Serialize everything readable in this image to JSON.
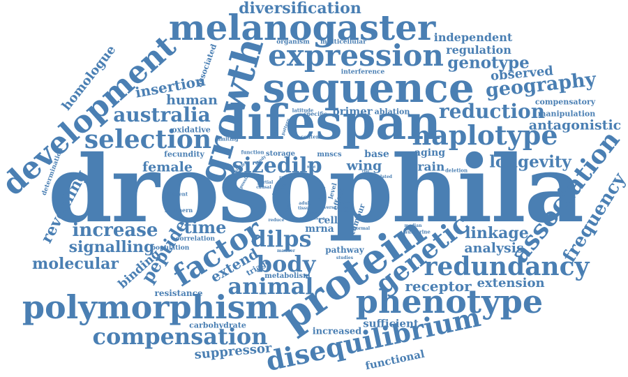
{
  "cloud": {
    "color": "#4a7fb3",
    "words": [
      {
        "text": "drosophila",
        "weight": 1.0
      },
      {
        "text": "lifespan",
        "weight": 0.62
      },
      {
        "text": "sequence",
        "weight": 0.55
      },
      {
        "text": "protein",
        "weight": 0.5
      },
      {
        "text": "melanogaster",
        "weight": 0.47
      },
      {
        "text": "growth",
        "weight": 0.47
      },
      {
        "text": "expression",
        "weight": 0.4
      },
      {
        "text": "development",
        "weight": 0.4
      },
      {
        "text": "polymorphism",
        "weight": 0.42
      },
      {
        "text": "phenotype",
        "weight": 0.42
      },
      {
        "text": "disequilibrium",
        "weight": 0.37
      },
      {
        "text": "factor",
        "weight": 0.36
      },
      {
        "text": "genetic",
        "weight": 0.36
      },
      {
        "text": "association",
        "weight": 0.34
      },
      {
        "text": "haplotype",
        "weight": 0.33
      },
      {
        "text": "redundancy",
        "weight": 0.33
      },
      {
        "text": "selection",
        "weight": 0.33
      },
      {
        "text": "compensation",
        "weight": 0.3
      },
      {
        "text": "animal",
        "weight": 0.3
      },
      {
        "text": "body",
        "weight": 0.3
      },
      {
        "text": "dilps",
        "weight": 0.3
      },
      {
        "text": "sizedilp",
        "weight": 0.29
      },
      {
        "text": "reduction",
        "weight": 0.28
      },
      {
        "text": "australia",
        "weight": 0.27
      },
      {
        "text": "geography",
        "weight": 0.26
      },
      {
        "text": "frequency",
        "weight": 0.26
      },
      {
        "text": "increase",
        "weight": 0.25
      },
      {
        "text": "diversification",
        "weight": 0.24
      },
      {
        "text": "genotype",
        "weight": 0.24
      },
      {
        "text": "longevity",
        "weight": 0.24
      },
      {
        "text": "molecular",
        "weight": 0.23
      },
      {
        "text": "time",
        "weight": 0.23
      },
      {
        "text": "peptide",
        "weight": 0.23
      },
      {
        "text": "linkage",
        "weight": 0.22
      },
      {
        "text": "signalling",
        "weight": 0.22
      },
      {
        "text": "insertion",
        "weight": 0.22
      },
      {
        "text": "antagonistic",
        "weight": 0.21
      },
      {
        "text": "analysis",
        "weight": 0.21
      },
      {
        "text": "human",
        "weight": 0.21
      },
      {
        "text": "extend",
        "weight": 0.21
      },
      {
        "text": "receptor",
        "weight": 0.21
      },
      {
        "text": "extension",
        "weight": 0.2
      },
      {
        "text": "revealing",
        "weight": 0.2
      },
      {
        "text": "female",
        "weight": 0.2
      },
      {
        "text": "homologue",
        "weight": 0.19
      },
      {
        "text": "suppressor",
        "weight": 0.2
      },
      {
        "text": "wing",
        "weight": 0.2
      },
      {
        "text": "brain",
        "weight": 0.18
      },
      {
        "text": "observed",
        "weight": 0.19
      },
      {
        "text": "binding",
        "weight": 0.18
      },
      {
        "text": "independent",
        "weight": 0.17
      },
      {
        "text": "regulation",
        "weight": 0.17
      },
      {
        "text": "functional",
        "weight": 0.17
      },
      {
        "text": "sufficient",
        "weight": 0.16
      },
      {
        "text": "increased",
        "weight": 0.14
      },
      {
        "text": "primer",
        "weight": 0.17
      },
      {
        "text": "mrna",
        "weight": 0.15
      },
      {
        "text": "cell",
        "weight": 0.15
      },
      {
        "text": "base",
        "weight": 0.15
      },
      {
        "text": "aging",
        "weight": 0.15
      },
      {
        "text": "pathway",
        "weight": 0.13
      },
      {
        "text": "compensatory",
        "weight": 0.13
      },
      {
        "text": "manipulation",
        "weight": 0.13
      },
      {
        "text": "resistance",
        "weight": 0.13
      },
      {
        "text": "carbohydrate",
        "weight": 0.12
      },
      {
        "text": "oxidative",
        "weight": 0.12
      },
      {
        "text": "fecundity",
        "weight": 0.12
      },
      {
        "text": "associated",
        "weight": 0.12
      },
      {
        "text": "tumour",
        "weight": 0.12
      },
      {
        "text": "triage",
        "weight": 0.12
      },
      {
        "text": "metabolism",
        "weight": 0.11
      },
      {
        "text": "mnscs",
        "weight": 0.11
      },
      {
        "text": "storage",
        "weight": 0.11
      },
      {
        "text": "ablation",
        "weight": 0.12
      },
      {
        "text": "interference",
        "weight": 0.1
      },
      {
        "text": "organism",
        "weight": 0.1
      },
      {
        "text": "multicellular",
        "weight": 0.09
      },
      {
        "text": "determination",
        "weight": 0.1
      },
      {
        "text": "correlation",
        "weight": 0.1
      },
      {
        "text": "population",
        "weight": 0.1
      },
      {
        "text": "effect",
        "weight": 0.1
      },
      {
        "text": "southern",
        "weight": 0.08
      },
      {
        "text": "latitude",
        "weight": 0.07
      },
      {
        "text": "specific",
        "weight": 0.08
      },
      {
        "text": "content",
        "weight": 0.07
      },
      {
        "text": "limiting",
        "weight": 0.07
      },
      {
        "text": "function",
        "weight": 0.07
      },
      {
        "text": "study",
        "weight": 0.06
      },
      {
        "text": "higher",
        "weight": 0.06
      },
      {
        "text": "possible",
        "weight": 0.06
      },
      {
        "text": "partial",
        "weight": 0.06
      },
      {
        "text": "causal",
        "weight": 0.06
      },
      {
        "text": "result",
        "weight": 0.06
      },
      {
        "text": "change",
        "weight": 0.06
      },
      {
        "text": "pattern",
        "weight": 0.06
      },
      {
        "text": "related",
        "weight": 0.06
      },
      {
        "text": "deletion",
        "weight": 0.06
      },
      {
        "text": "different",
        "weight": 0.07
      },
      {
        "text": "level",
        "weight": 0.07
      },
      {
        "text": "data",
        "weight": 0.07
      },
      {
        "text": "adult",
        "weight": 0.06
      },
      {
        "text": "tissue",
        "weight": 0.06
      },
      {
        "text": "diverse",
        "weight": 0.06
      },
      {
        "text": "reduce",
        "weight": 0.06
      },
      {
        "text": "manner",
        "weight": 0.06
      },
      {
        "text": "studies",
        "weight": 0.06
      },
      {
        "text": "median",
        "weight": 0.06
      },
      {
        "text": "autocrine",
        "weight": 0.07
      },
      {
        "text": "normal",
        "weight": 0.06
      },
      {
        "text": "point",
        "weight": 0.05
      },
      {
        "text": "mutant",
        "weight": 0.05
      },
      {
        "text": "whole",
        "weight": 0.05
      },
      {
        "text": "target",
        "weight": 0.05
      },
      {
        "text": "lower",
        "weight": 0.05
      },
      {
        "text": "knock",
        "weight": 0.05
      },
      {
        "text": "rise",
        "weight": 0.05
      },
      {
        "text": "term",
        "weight": 0.05
      },
      {
        "text": "field",
        "weight": 0.05
      },
      {
        "text": "isolat",
        "weight": 0.05
      }
    ]
  }
}
